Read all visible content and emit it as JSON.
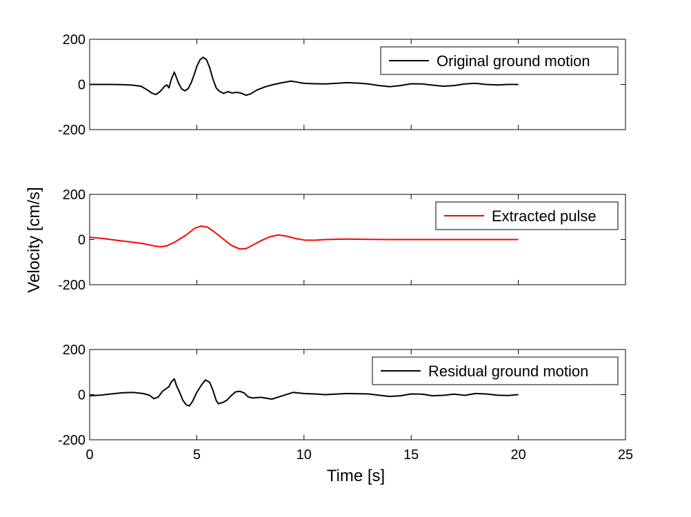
{
  "figure": {
    "ylabel": "Velocity [cm/s]",
    "xlabel": "Time [s]"
  },
  "chart_data": [
    {
      "type": "line",
      "xlim": [
        0,
        25
      ],
      "ylim": [
        -200,
        200
      ],
      "xticks": [
        0,
        5,
        10,
        15,
        20,
        25
      ],
      "yticks": [
        -200,
        0,
        200
      ],
      "show_xticklabels": false,
      "legend_position": "top-right",
      "series": [
        {
          "name": "Original ground motion",
          "color": "#000000",
          "x": [
            0,
            0.5,
            1.0,
            1.5,
            2.0,
            2.4,
            2.7,
            2.9,
            3.1,
            3.3,
            3.5,
            3.6,
            3.7,
            3.8,
            3.95,
            4.05,
            4.15,
            4.3,
            4.45,
            4.6,
            4.75,
            4.9,
            5.0,
            5.15,
            5.3,
            5.45,
            5.6,
            5.75,
            5.9,
            6.05,
            6.25,
            6.45,
            6.65,
            6.85,
            7.05,
            7.3,
            7.5,
            7.8,
            8.2,
            8.6,
            9.0,
            9.4,
            9.7,
            10.0,
            10.5,
            11.0,
            11.5,
            12.0,
            12.5,
            13.0,
            13.5,
            14.0,
            14.5,
            15.0,
            15.5,
            16.0,
            16.5,
            17.0,
            17.5,
            18.0,
            18.5,
            19.0,
            19.5,
            20.0
          ],
          "y": [
            0,
            0,
            0,
            -1,
            -3,
            -8,
            -25,
            -38,
            -45,
            -30,
            -8,
            -2,
            -15,
            20,
            55,
            30,
            5,
            -20,
            -28,
            -18,
            10,
            50,
            80,
            110,
            120,
            110,
            75,
            25,
            -15,
            -30,
            -40,
            -32,
            -38,
            -35,
            -38,
            -48,
            -42,
            -25,
            -10,
            0,
            8,
            15,
            10,
            5,
            3,
            2,
            5,
            8,
            6,
            2,
            -5,
            -10,
            -5,
            3,
            2,
            -3,
            -8,
            -5,
            2,
            5,
            0,
            -2,
            0,
            0
          ]
        }
      ]
    },
    {
      "type": "line",
      "xlim": [
        0,
        25
      ],
      "ylim": [
        -200,
        200
      ],
      "xticks": [
        0,
        5,
        10,
        15,
        20,
        25
      ],
      "yticks": [
        -200,
        0,
        200
      ],
      "show_xticklabels": false,
      "legend_position": "top-right",
      "series": [
        {
          "name": "Extracted pulse",
          "color": "#ff0000",
          "x": [
            0,
            0.5,
            1.0,
            1.5,
            2.0,
            2.5,
            3.0,
            3.3,
            3.6,
            4.0,
            4.5,
            4.9,
            5.2,
            5.5,
            5.8,
            6.2,
            6.6,
            7.0,
            7.3,
            7.6,
            8.0,
            8.4,
            8.8,
            9.2,
            9.6,
            10.0,
            10.5,
            11.0,
            12.0,
            13.0,
            14.0,
            15.0,
            16.0,
            17.0,
            18.0,
            19.0,
            20.0
          ],
          "y": [
            10,
            6,
            0,
            -6,
            -12,
            -18,
            -28,
            -32,
            -28,
            -10,
            20,
            50,
            60,
            55,
            35,
            5,
            -25,
            -42,
            -40,
            -25,
            -5,
            12,
            20,
            15,
            5,
            -2,
            -3,
            0,
            2,
            1,
            0,
            0,
            0,
            0,
            0,
            0,
            0
          ]
        }
      ]
    },
    {
      "type": "line",
      "xlim": [
        0,
        25
      ],
      "ylim": [
        -200,
        200
      ],
      "xticks": [
        0,
        5,
        10,
        15,
        20,
        25
      ],
      "yticks": [
        -200,
        0,
        200
      ],
      "show_xticklabels": true,
      "legend_position": "top-right",
      "series": [
        {
          "name": "Residual ground motion",
          "color": "#000000",
          "x": [
            0,
            0.5,
            1.0,
            1.5,
            2.0,
            2.5,
            2.8,
            3.0,
            3.2,
            3.4,
            3.55,
            3.7,
            3.8,
            3.95,
            4.05,
            4.2,
            4.35,
            4.5,
            4.65,
            4.8,
            5.0,
            5.2,
            5.4,
            5.6,
            5.75,
            5.9,
            6.0,
            6.2,
            6.4,
            6.6,
            6.8,
            7.0,
            7.2,
            7.4,
            7.6,
            8.0,
            8.5,
            9.0,
            9.5,
            10.0,
            10.5,
            11.0,
            12.0,
            13.0,
            14.0,
            14.5,
            15.0,
            15.5,
            16.0,
            16.5,
            17.0,
            17.5,
            18.0,
            18.5,
            19.0,
            19.5,
            20.0
          ],
          "y": [
            -5,
            -2,
            3,
            8,
            10,
            5,
            -3,
            -18,
            -10,
            15,
            25,
            35,
            55,
            70,
            40,
            10,
            -25,
            -45,
            -50,
            -30,
            10,
            40,
            65,
            55,
            20,
            -25,
            -40,
            -35,
            -25,
            -5,
            12,
            15,
            8,
            -10,
            -15,
            -12,
            -20,
            -5,
            10,
            5,
            3,
            0,
            5,
            3,
            -8,
            -5,
            3,
            2,
            -5,
            -3,
            2,
            -3,
            5,
            3,
            -2,
            -4,
            0
          ]
        }
      ]
    }
  ]
}
